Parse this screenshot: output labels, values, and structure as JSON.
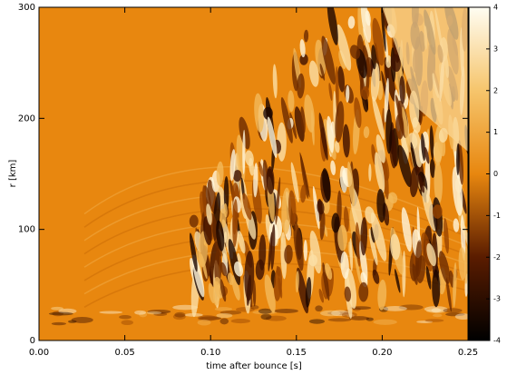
{
  "chart_data": {
    "type": "heatmap",
    "xlabel": "time after bounce [s]",
    "ylabel": "r [km]",
    "xlim": [
      0,
      0.25
    ],
    "ylim": [
      0,
      300
    ],
    "xticks": [
      {
        "value": 0,
        "label": "0.00"
      },
      0.05,
      {
        "value": 0.1,
        "label": "0.10"
      },
      0.15,
      {
        "value": 0.2,
        "label": "0.20"
      },
      0.25
    ],
    "yticks": [
      0,
      100,
      200,
      300
    ],
    "background": "#e8870f",
    "colorbar": {
      "lim": [
        -4,
        4
      ],
      "ticks": [
        4,
        3,
        2,
        1,
        0,
        -1,
        -2,
        -3,
        -4
      ],
      "colormap": [
        "#000000",
        "#5a1c00",
        "#e8870f",
        "#f6c56c",
        "#fffdf2"
      ]
    }
  }
}
